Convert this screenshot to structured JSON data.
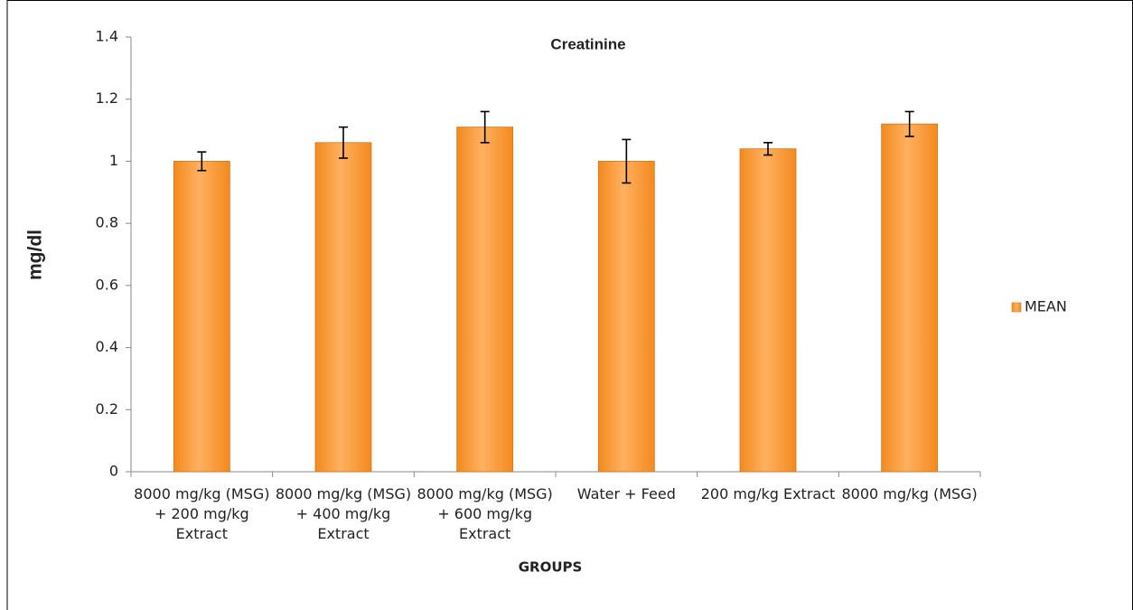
{
  "chart_data": {
    "type": "bar",
    "title": "Creatinine",
    "x_label": "GROUPS",
    "y_label": "mg/dl",
    "categories": [
      "8000 mg/kg (MSG) + 200 mg/kg Extract",
      "8000 mg/kg (MSG) + 400 mg/kg Extract",
      "8000 mg/kg (MSG) + 600 mg/kg Extract",
      "Water + Feed",
      "200 mg/kg Extract",
      "8000 mg/kg (MSG)"
    ],
    "series": [
      {
        "name": "MEAN",
        "color": "#f28a1e",
        "values": [
          1.0,
          1.06,
          1.11,
          1.0,
          1.04,
          1.12
        ],
        "errors": [
          0.03,
          0.05,
          0.05,
          0.07,
          0.02,
          0.04
        ]
      }
    ],
    "ylim": [
      0,
      1.4
    ],
    "yticks": [
      0,
      0.2,
      0.4,
      0.6,
      0.8,
      1,
      1.2,
      1.4
    ],
    "grid": false,
    "legend": "right"
  }
}
